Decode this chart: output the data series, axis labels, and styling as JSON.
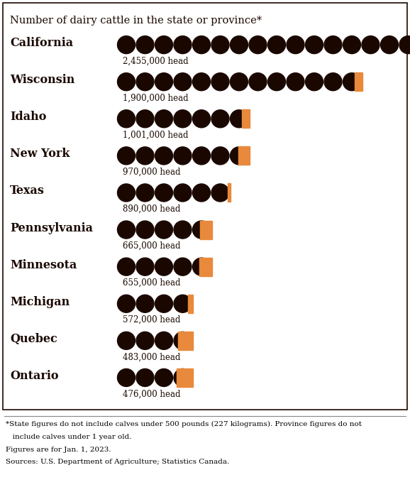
{
  "title": "Number of dairy cattle in the state or province*",
  "bg_color": "#E8893B",
  "text_color": "#1a0800",
  "circle_color": "#1a0800",
  "states": [
    "California",
    "Wisconsin",
    "Idaho",
    "New York",
    "Texas",
    "Pennsylvania",
    "Minnesota",
    "Michigan",
    "Quebec",
    "Ontario"
  ],
  "values": [
    2455000,
    1900000,
    1001000,
    970000,
    890000,
    665000,
    655000,
    572000,
    483000,
    476000
  ],
  "labels": [
    "2,455,000 head",
    "1,900,000 head",
    "1,001,000 head",
    "970,000 head",
    "890,000 head",
    "665,000 head",
    "655,000 head",
    "572,000 head",
    "483,000 head",
    "476,000 head"
  ],
  "unit": 150000,
  "footnote_line1": "*State figures do not include calves under 500 pounds (227 kilograms). Province figures do not",
  "footnote_line2": "   include calves under 1 year old.",
  "footnote_line3": "Figures are for Jan. 1, 2023.",
  "footnote_line4": "Sources: U.S. Department of Agriculture; Statistics Canada."
}
